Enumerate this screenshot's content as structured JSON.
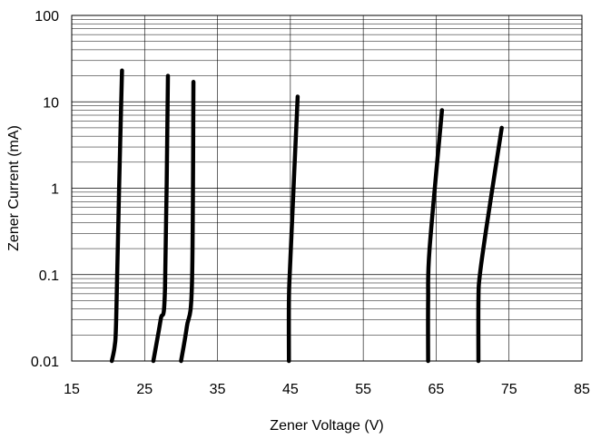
{
  "chart_data": {
    "type": "line",
    "title": "",
    "xlabel": "Zener Voltage (V)",
    "ylabel": "Zener Current (mA)",
    "xlim": [
      15,
      85
    ],
    "ylim": [
      0.01,
      100
    ],
    "yscale": "log",
    "grid": true,
    "legend": "none",
    "x_ticks": [
      15,
      25,
      35,
      45,
      55,
      65,
      75,
      85
    ],
    "x_tick_labels": [
      "15",
      "25",
      "35",
      "45",
      "55",
      "65",
      "75",
      "85"
    ],
    "y_ticks": [
      0.01,
      0.1,
      1,
      10,
      100
    ],
    "y_tick_labels": [
      "0.01",
      "0.1",
      "1",
      "10",
      "100"
    ],
    "line_color": "#000000",
    "series": [
      {
        "x": [
          20.5,
          20.9,
          21.1,
          21.5,
          21.9
        ],
        "y": [
          0.01,
          0.015,
          0.03,
          1,
          23
        ]
      },
      {
        "x": [
          26.2,
          27.2,
          27.8,
          28.2
        ],
        "y": [
          0.01,
          0.03,
          0.07,
          20
        ]
      },
      {
        "x": [
          30.0,
          30.8,
          31.5,
          31.7
        ],
        "y": [
          0.01,
          0.025,
          0.08,
          17
        ]
      },
      {
        "x": [
          44.8,
          44.8,
          45.0,
          46.0
        ],
        "y": [
          0.01,
          0.05,
          0.15,
          11.5
        ]
      },
      {
        "x": [
          63.9,
          63.9,
          64.1,
          65.8
        ],
        "y": [
          0.01,
          0.05,
          0.2,
          8
        ]
      },
      {
        "x": [
          70.8,
          70.8,
          71.0,
          72.0,
          74.0
        ],
        "y": [
          0.01,
          0.05,
          0.1,
          0.4,
          5
        ]
      }
    ]
  }
}
